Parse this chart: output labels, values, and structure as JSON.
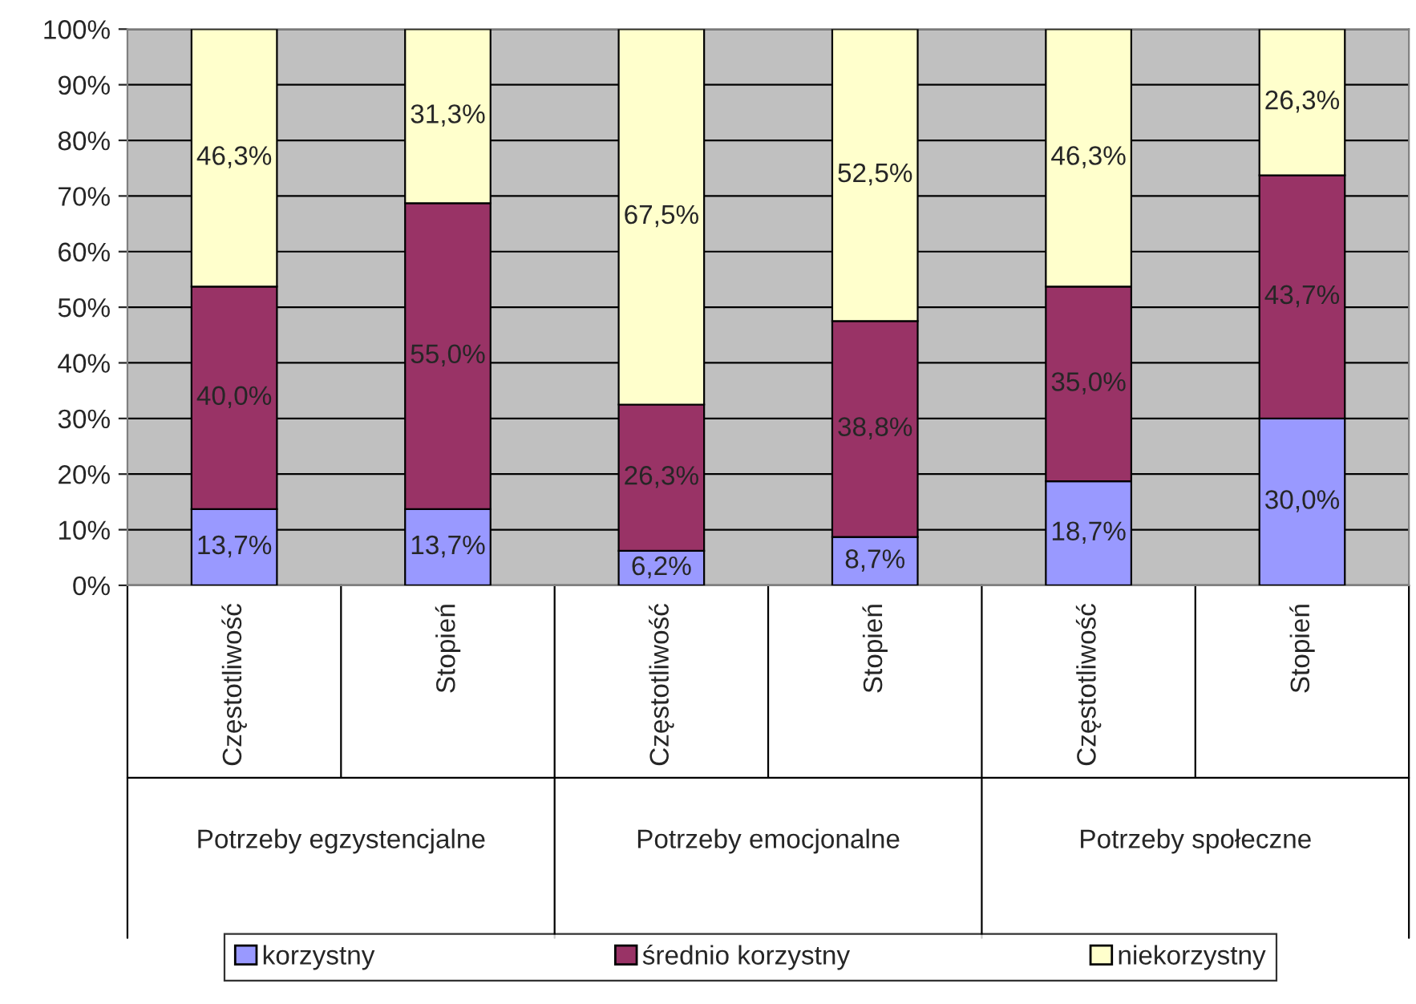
{
  "chart_data": {
    "type": "bar",
    "stacked": true,
    "categories": [
      "Częstotliwość",
      "Stopień",
      "Częstotliwość",
      "Stopień",
      "Częstotliwość",
      "Stopień"
    ],
    "annotations": [
      "Potrzeby egzystencjalne",
      "Potrzeby emocjonalne",
      "Potrzeby społeczne"
    ],
    "series": [
      {
        "name": "korzystny",
        "color": "#9999ff",
        "values": [
          13.7,
          13.7,
          6.2,
          8.7,
          18.7,
          30.0
        ],
        "value_labels": [
          "13,7%",
          "13,7%",
          "6,2%",
          "8,7%",
          "18,7%",
          "30,0%"
        ]
      },
      {
        "name": "średnio korzystny",
        "color": "#993366",
        "values": [
          40.0,
          55.0,
          26.3,
          38.8,
          35.0,
          43.7
        ],
        "value_labels": [
          "40,0%",
          "55,0%",
          "26,3%",
          "38,8%",
          "35,0%",
          "43,7%"
        ]
      },
      {
        "name": "niekorzystny",
        "color": "#ffffcc",
        "values": [
          46.3,
          31.3,
          67.5,
          52.5,
          46.3,
          26.3
        ],
        "value_labels": [
          "46,3%",
          "31,3%",
          "67,5%",
          "52,5%",
          "46,3%",
          "26,3%"
        ]
      }
    ],
    "ylim": [
      0,
      100
    ],
    "yticks": [
      {
        "value": 0,
        "label": "0%"
      },
      {
        "value": 10,
        "label": "10%"
      },
      {
        "value": 20,
        "label": "20%"
      },
      {
        "value": 30,
        "label": "30%"
      },
      {
        "value": 40,
        "label": "40%"
      },
      {
        "value": 50,
        "label": "50%"
      },
      {
        "value": 60,
        "label": "60%"
      },
      {
        "value": 70,
        "label": "70%"
      },
      {
        "value": 80,
        "label": "80%"
      },
      {
        "value": 90,
        "label": "90%"
      },
      {
        "value": 100,
        "label": "100%"
      }
    ],
    "grid": "y",
    "legend": "bottom"
  }
}
